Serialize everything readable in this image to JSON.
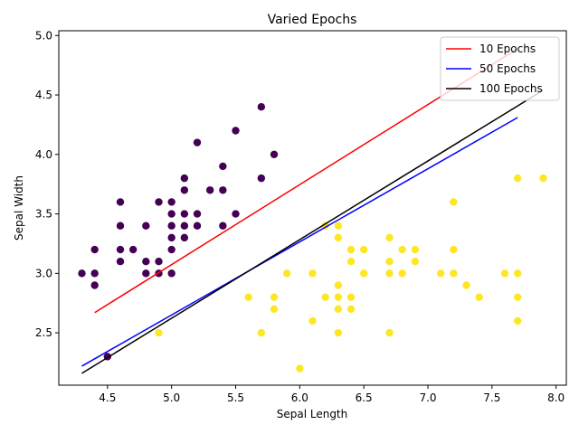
{
  "chart_data": {
    "type": "scatter",
    "title": "Varied Epochs",
    "xlabel": "Sepal Length",
    "ylabel": "Sepal Width",
    "xlim": [
      4.12,
      8.08
    ],
    "ylim": [
      2.06,
      5.04
    ],
    "xticks": [
      "4.5",
      "5.0",
      "5.5",
      "6.0",
      "6.5",
      "7.0",
      "7.5",
      "8.0"
    ],
    "yticks": [
      "2.5",
      "3.0",
      "3.5",
      "4.0",
      "4.5",
      "5.0"
    ],
    "grid": false,
    "legend_position": "top-right",
    "colors": {
      "class0": "#440154",
      "class1": "#fde725"
    },
    "points": {
      "class0": [
        [
          4.3,
          3.0
        ],
        [
          4.4,
          2.9
        ],
        [
          4.4,
          3.0
        ],
        [
          4.4,
          3.2
        ],
        [
          4.5,
          2.3
        ],
        [
          4.6,
          3.1
        ],
        [
          4.6,
          3.2
        ],
        [
          4.6,
          3.4
        ],
        [
          4.6,
          3.6
        ],
        [
          4.7,
          3.2
        ],
        [
          4.8,
          3.0
        ],
        [
          4.8,
          3.1
        ],
        [
          4.8,
          3.4
        ],
        [
          4.9,
          3.0
        ],
        [
          4.9,
          3.1
        ],
        [
          4.9,
          3.6
        ],
        [
          5.0,
          3.0
        ],
        [
          5.0,
          3.2
        ],
        [
          5.0,
          3.3
        ],
        [
          5.0,
          3.4
        ],
        [
          5.0,
          3.5
        ],
        [
          5.0,
          3.6
        ],
        [
          5.1,
          3.3
        ],
        [
          5.1,
          3.4
        ],
        [
          5.1,
          3.5
        ],
        [
          5.1,
          3.7
        ],
        [
          5.1,
          3.8
        ],
        [
          5.2,
          3.4
        ],
        [
          5.2,
          3.5
        ],
        [
          5.2,
          4.1
        ],
        [
          5.3,
          3.7
        ],
        [
          5.4,
          3.4
        ],
        [
          5.4,
          3.7
        ],
        [
          5.4,
          3.9
        ],
        [
          5.5,
          3.5
        ],
        [
          5.5,
          4.2
        ],
        [
          5.7,
          3.8
        ],
        [
          5.7,
          4.4
        ],
        [
          5.8,
          4.0
        ]
      ],
      "class1": [
        [
          4.9,
          2.5
        ],
        [
          5.6,
          2.8
        ],
        [
          5.7,
          2.5
        ],
        [
          5.8,
          2.7
        ],
        [
          5.8,
          2.8
        ],
        [
          5.9,
          3.0
        ],
        [
          6.0,
          2.2
        ],
        [
          6.1,
          2.6
        ],
        [
          6.1,
          3.0
        ],
        [
          6.2,
          2.8
        ],
        [
          6.2,
          3.4
        ],
        [
          6.3,
          2.5
        ],
        [
          6.3,
          2.7
        ],
        [
          6.3,
          2.8
        ],
        [
          6.3,
          2.9
        ],
        [
          6.3,
          3.3
        ],
        [
          6.3,
          3.4
        ],
        [
          6.4,
          2.7
        ],
        [
          6.4,
          2.8
        ],
        [
          6.4,
          3.1
        ],
        [
          6.4,
          3.2
        ],
        [
          6.5,
          3.0
        ],
        [
          6.5,
          3.2
        ],
        [
          6.7,
          2.5
        ],
        [
          6.7,
          3.0
        ],
        [
          6.7,
          3.1
        ],
        [
          6.7,
          3.3
        ],
        [
          6.8,
          3.0
        ],
        [
          6.8,
          3.2
        ],
        [
          6.9,
          3.1
        ],
        [
          6.9,
          3.2
        ],
        [
          7.1,
          3.0
        ],
        [
          7.2,
          3.0
        ],
        [
          7.2,
          3.2
        ],
        [
          7.2,
          3.6
        ],
        [
          7.3,
          2.9
        ],
        [
          7.4,
          2.8
        ],
        [
          7.6,
          3.0
        ],
        [
          7.7,
          2.6
        ],
        [
          7.7,
          2.8
        ],
        [
          7.7,
          3.0
        ],
        [
          7.7,
          3.8
        ],
        [
          7.9,
          3.8
        ]
      ]
    },
    "series": [
      {
        "name": "10 Epochs",
        "color": "#ff0000",
        "x": [
          4.4,
          7.7
        ],
        "y": [
          2.67,
          4.89
        ]
      },
      {
        "name": "50 Epochs",
        "color": "#0000ff",
        "x": [
          4.3,
          7.7
        ],
        "y": [
          2.22,
          4.31
        ]
      },
      {
        "name": "100 Epochs",
        "color": "#000000",
        "x": [
          4.3,
          7.9
        ],
        "y": [
          2.16,
          4.54
        ]
      }
    ]
  }
}
